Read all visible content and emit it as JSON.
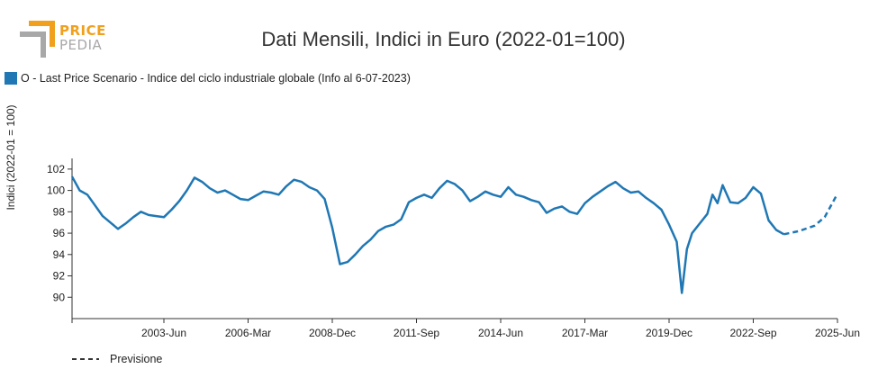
{
  "header": {
    "logo_top": "PRICE",
    "logo_bottom": "PEDIA",
    "title": "Dati Mensili, Indici in Euro (2022-01=100)"
  },
  "legend": {
    "series_label": "O - Last Price Scenario - Indice del ciclo industriale globale (Info al 6-07-2023)",
    "forecast_label": "Previsione"
  },
  "colors": {
    "series": "#1f77b4",
    "logo_orange": "#f0a01c",
    "logo_gray": "#a8a8a8"
  },
  "chart_data": {
    "type": "line",
    "title": "Dati Mensili, Indici in Euro (2022-01=100)",
    "ylabel": "Indici (2022-01 = 100)",
    "xlabel": "",
    "xlim": [
      "2000-06",
      "2025-06"
    ],
    "ylim": [
      88,
      103
    ],
    "yticks": [
      90,
      92,
      94,
      96,
      98,
      100,
      102
    ],
    "xticks": [
      "2003-Jun",
      "2006-Mar",
      "2008-Dec",
      "2011-Sep",
      "2014-Jun",
      "2017-Mar",
      "2019-Dec",
      "2022-Sep",
      "2025-Jun"
    ],
    "series": [
      {
        "name": "O - Last Price Scenario - Indice del ciclo industriale globale (Info al 6-07-2023)",
        "style": "solid",
        "points": [
          [
            "2000-06",
            101.3
          ],
          [
            "2000-09",
            100.0
          ],
          [
            "2000-12",
            99.6
          ],
          [
            "2001-03",
            98.6
          ],
          [
            "2001-06",
            97.6
          ],
          [
            "2001-09",
            97.0
          ],
          [
            "2001-12",
            96.4
          ],
          [
            "2002-03",
            96.9
          ],
          [
            "2002-06",
            97.5
          ],
          [
            "2002-09",
            98.0
          ],
          [
            "2002-12",
            97.7
          ],
          [
            "2003-03",
            97.6
          ],
          [
            "2003-06",
            97.5
          ],
          [
            "2003-09",
            98.2
          ],
          [
            "2003-12",
            99.0
          ],
          [
            "2004-03",
            100.0
          ],
          [
            "2004-06",
            101.2
          ],
          [
            "2004-09",
            100.8
          ],
          [
            "2004-12",
            100.2
          ],
          [
            "2005-03",
            99.8
          ],
          [
            "2005-06",
            100.0
          ],
          [
            "2005-09",
            99.6
          ],
          [
            "2005-12",
            99.2
          ],
          [
            "2006-03",
            99.1
          ],
          [
            "2006-06",
            99.5
          ],
          [
            "2006-09",
            99.9
          ],
          [
            "2006-12",
            99.8
          ],
          [
            "2007-03",
            99.6
          ],
          [
            "2007-06",
            100.4
          ],
          [
            "2007-09",
            101.0
          ],
          [
            "2007-12",
            100.8
          ],
          [
            "2008-03",
            100.3
          ],
          [
            "2008-06",
            100.0
          ],
          [
            "2008-09",
            99.2
          ],
          [
            "2008-12",
            96.5
          ],
          [
            "2009-03",
            93.1
          ],
          [
            "2009-06",
            93.3
          ],
          [
            "2009-09",
            94.0
          ],
          [
            "2009-12",
            94.8
          ],
          [
            "2010-03",
            95.4
          ],
          [
            "2010-06",
            96.2
          ],
          [
            "2010-09",
            96.6
          ],
          [
            "2010-12",
            96.8
          ],
          [
            "2011-03",
            97.3
          ],
          [
            "2011-06",
            98.9
          ],
          [
            "2011-09",
            99.3
          ],
          [
            "2011-12",
            99.6
          ],
          [
            "2012-03",
            99.3
          ],
          [
            "2012-06",
            100.2
          ],
          [
            "2012-09",
            100.9
          ],
          [
            "2012-12",
            100.6
          ],
          [
            "2013-03",
            100.0
          ],
          [
            "2013-06",
            99.0
          ],
          [
            "2013-09",
            99.4
          ],
          [
            "2013-12",
            99.9
          ],
          [
            "2014-03",
            99.6
          ],
          [
            "2014-06",
            99.4
          ],
          [
            "2014-09",
            100.3
          ],
          [
            "2014-12",
            99.6
          ],
          [
            "2015-03",
            99.4
          ],
          [
            "2015-06",
            99.1
          ],
          [
            "2015-09",
            98.9
          ],
          [
            "2015-12",
            97.9
          ],
          [
            "2016-03",
            98.3
          ],
          [
            "2016-06",
            98.5
          ],
          [
            "2016-09",
            98.0
          ],
          [
            "2016-12",
            97.8
          ],
          [
            "2017-03",
            98.8
          ],
          [
            "2017-06",
            99.4
          ],
          [
            "2017-09",
            99.9
          ],
          [
            "2017-12",
            100.4
          ],
          [
            "2018-03",
            100.8
          ],
          [
            "2018-06",
            100.2
          ],
          [
            "2018-09",
            99.8
          ],
          [
            "2018-12",
            99.9
          ],
          [
            "2019-03",
            99.3
          ],
          [
            "2019-06",
            98.8
          ],
          [
            "2019-09",
            98.2
          ],
          [
            "2019-12",
            96.8
          ],
          [
            "2020-03",
            95.2
          ],
          [
            "2020-05",
            90.4
          ],
          [
            "2020-07",
            94.5
          ],
          [
            "2020-09",
            96.0
          ],
          [
            "2020-12",
            96.9
          ],
          [
            "2021-03",
            97.8
          ],
          [
            "2021-05",
            99.6
          ],
          [
            "2021-07",
            98.8
          ],
          [
            "2021-09",
            100.5
          ],
          [
            "2021-12",
            98.9
          ],
          [
            "2022-03",
            98.8
          ],
          [
            "2022-06",
            99.3
          ],
          [
            "2022-09",
            100.3
          ],
          [
            "2022-12",
            99.7
          ],
          [
            "2023-03",
            97.2
          ],
          [
            "2023-06",
            96.3
          ],
          [
            "2023-09",
            95.9
          ]
        ]
      },
      {
        "name": "Previsione",
        "style": "dashed",
        "points": [
          [
            "2023-09",
            95.9
          ],
          [
            "2024-03",
            96.2
          ],
          [
            "2024-09",
            96.7
          ],
          [
            "2025-01",
            97.5
          ],
          [
            "2025-06",
            99.7
          ]
        ]
      }
    ]
  }
}
